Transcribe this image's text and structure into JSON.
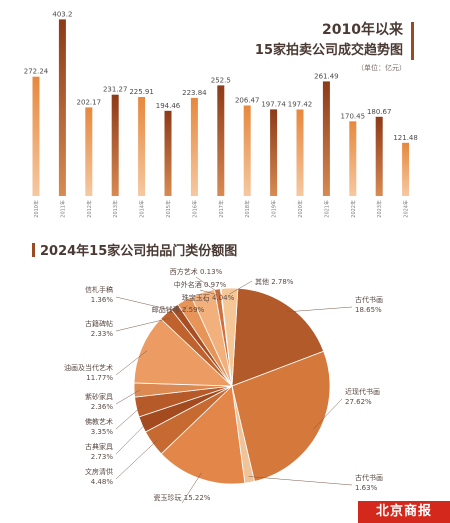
{
  "brand": "北京商报",
  "chart_data": [
    {
      "type": "bar",
      "title": "2010年以来\n15家拍卖公司成交趋势图",
      "unit": "（单位：亿元）",
      "categories": [
        "2010年",
        "2011年",
        "2012年",
        "2013年",
        "2014年",
        "2015年",
        "2016年",
        "2017年",
        "2018年",
        "2019年",
        "2020年",
        "2021年",
        "2022年",
        "2023年",
        "2024年"
      ],
      "values": [
        272.24,
        403.2,
        202.17,
        231.27,
        225.91,
        194.46,
        223.84,
        252.5,
        206.47,
        197.74,
        197.42,
        261.49,
        170.45,
        180.67,
        121.48
      ],
      "value_labels": [
        "272.24",
        "403.2",
        "202.17",
        "231.27",
        "225.91",
        "194.46",
        "223.84",
        "252.5",
        "206.47",
        "197.74",
        "197.42",
        "261.49",
        "170.45",
        "180.67",
        "121.48"
      ],
      "ylim": [
        0,
        420
      ]
    },
    {
      "type": "pie",
      "title": "2024年15家公司拍品门类份额图",
      "slices": [
        {
          "label": "古代书画",
          "value": 18.65,
          "pct": "18.65%",
          "color": "#b25a2a"
        },
        {
          "label": "近现代书画",
          "value": 27.62,
          "pct": "27.62%",
          "color": "#d4783c"
        },
        {
          "label": "古代书画",
          "value": 1.63,
          "pct": "1.63%",
          "color": "#f0c49a"
        },
        {
          "label": "瓷玉珍玩",
          "value": 15.22,
          "pct": "15.22%",
          "color": "#e3864a"
        },
        {
          "label": "文房清供",
          "value": 4.48,
          "pct": "4.48%",
          "color": "#c66a32"
        },
        {
          "label": "古典家具",
          "value": 2.73,
          "pct": "2.73%",
          "color": "#a34a1f"
        },
        {
          "label": "佛教艺术",
          "value": 3.35,
          "pct": "3.35%",
          "color": "#b55a28"
        },
        {
          "label": "紫砂家具",
          "value": 2.36,
          "pct": "2.36%",
          "color": "#dd8a52"
        },
        {
          "label": "油画及当代艺术",
          "value": 11.77,
          "pct": "11.77%",
          "color": "#ec9c62"
        },
        {
          "label": "古籍碑帖",
          "value": 2.33,
          "pct": "2.33%",
          "color": "#c0622e"
        },
        {
          "label": "信札手稿",
          "value": 1.36,
          "pct": "1.36%",
          "color": "#a94e22"
        },
        {
          "label": "邮品钱币",
          "value": 2.59,
          "pct": "2.59%",
          "color": "#e69458"
        },
        {
          "label": "珠宝玉石",
          "value": 4.04,
          "pct": "4.04%",
          "color": "#f2b07c"
        },
        {
          "label": "中外名酒",
          "value": 0.97,
          "pct": "0.97%",
          "color": "#cf7040"
        },
        {
          "label": "西方艺术",
          "value": 0.13,
          "pct": "0.13%",
          "color": "#9a4420"
        },
        {
          "label": "其他",
          "value": 2.78,
          "pct": "2.78%",
          "color": "#f6c796"
        }
      ]
    }
  ]
}
